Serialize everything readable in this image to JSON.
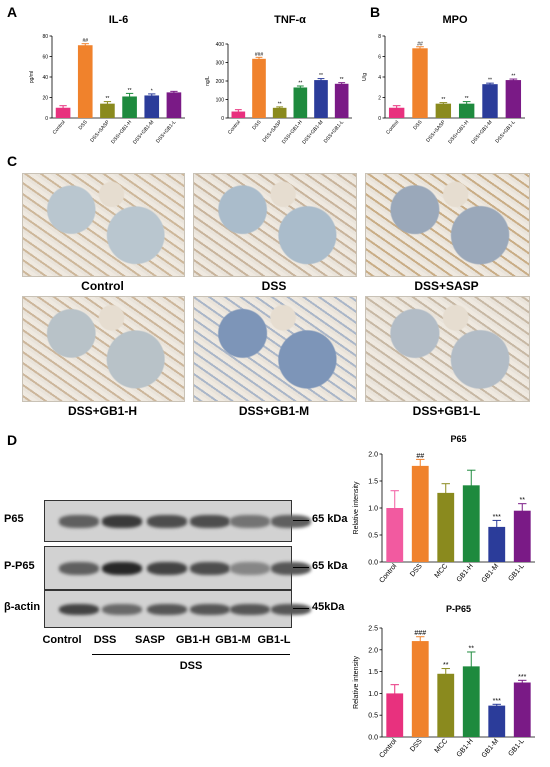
{
  "panel_labels": {
    "a": "A",
    "b": "B",
    "c": "C",
    "d": "D"
  },
  "colors": {
    "Control": "#e8317e",
    "DSS": "#f0822c",
    "SASP": "#8a8a1e",
    "GB1-H": "#1e8a3e",
    "GB1-M": "#2b3c9a",
    "GB1-L": "#7a1a86",
    "Control_light": "#f25aa0"
  },
  "micrographs": {
    "captions": [
      "Control",
      "DSS",
      "DSS+SASP",
      "DSS+GB1-H",
      "DSS+GB1-M",
      "DSS+GB1-L"
    ]
  },
  "blot": {
    "rows": [
      "P65",
      "P-P65",
      "β-actin"
    ],
    "kda": [
      "65 kDa",
      "65 kDa",
      "45kDa"
    ],
    "lanes": [
      "Control",
      "DSS",
      "SASP",
      "GB1-H",
      "GB1-M",
      "GB1-L"
    ],
    "group_label": "DSS",
    "band_intensity": [
      [
        0.55,
        0.75,
        0.65,
        0.65,
        0.45,
        0.55
      ],
      [
        0.55,
        0.85,
        0.7,
        0.65,
        0.35,
        0.6
      ],
      [
        0.7,
        0.5,
        0.6,
        0.6,
        0.6,
        0.6
      ]
    ]
  },
  "chart_data": [
    {
      "type": "bar",
      "title": "IL-6",
      "ylabel": "pg/ml",
      "categories": [
        "Control",
        "DSS",
        "DSS+SASP",
        "DSS+GB1-H",
        "DSS+GB1-M",
        "DSS+GB1-L"
      ],
      "values": [
        10,
        71,
        14,
        21,
        22,
        25
      ],
      "errors": [
        2,
        1.5,
        2,
        3,
        1.5,
        1
      ],
      "annotations": [
        "",
        "##",
        "**",
        "**",
        "*",
        ""
      ],
      "ylim": [
        0,
        80
      ],
      "yticks": [
        0,
        20,
        40,
        60,
        80
      ]
    },
    {
      "type": "bar",
      "title": "TNF-α",
      "ylabel": "ng/L",
      "categories": [
        "Control",
        "DSS",
        "DSS+SASP",
        "DSS+GB1-H",
        "DSS+GB1-M",
        "DSS+GB1-L"
      ],
      "values": [
        35,
        320,
        55,
        165,
        205,
        185
      ],
      "errors": [
        10,
        8,
        5,
        8,
        8,
        6
      ],
      "annotations": [
        "",
        "###",
        "**",
        "**",
        "**",
        "**"
      ],
      "ylim": [
        0,
        400
      ],
      "yticks": [
        0,
        100,
        200,
        300,
        400
      ]
    },
    {
      "type": "bar",
      "title": "MPO",
      "ylabel": "U/g",
      "categories": [
        "Control",
        "DSS",
        "DSS+SASP",
        "DSS+GB1-H",
        "DSS+GB1-M",
        "DSS+GB1-L"
      ],
      "values": [
        1.0,
        6.8,
        1.4,
        1.4,
        3.3,
        3.7
      ],
      "errors": [
        0.2,
        0.15,
        0.1,
        0.2,
        0.1,
        0.1
      ],
      "annotations": [
        "",
        "##",
        "**",
        "**",
        "**",
        "**"
      ],
      "ylim": [
        0,
        8
      ],
      "yticks": [
        0,
        2,
        4,
        6,
        8
      ]
    },
    {
      "type": "bar",
      "title": "P65",
      "ylabel": "Relative intensity",
      "categories": [
        "Control",
        "DSS",
        "MCC",
        "GB1-H",
        "GB1-M",
        "GB1-L"
      ],
      "values": [
        1.0,
        1.78,
        1.28,
        1.42,
        0.65,
        0.95
      ],
      "errors": [
        0.32,
        0.12,
        0.17,
        0.28,
        0.12,
        0.13
      ],
      "annotations": [
        "",
        "##",
        "",
        "",
        "***",
        "**"
      ],
      "ylim": [
        0,
        2.0
      ],
      "yticks": [
        "0.0",
        "0.5",
        "1.0",
        "1.5",
        "2.0"
      ]
    },
    {
      "type": "bar",
      "title": "P-P65",
      "ylabel": "Relative intensity",
      "categories": [
        "Control",
        "DSS",
        "MCC",
        "GB1-H",
        "GB1-M",
        "GB1-L"
      ],
      "values": [
        1.0,
        2.2,
        1.45,
        1.62,
        0.72,
        1.25
      ],
      "errors": [
        0.2,
        0.1,
        0.12,
        0.33,
        0.03,
        0.05
      ],
      "annotations": [
        "",
        "###",
        "**",
        "**",
        "***",
        "***"
      ],
      "ylim": [
        0,
        2.5
      ],
      "yticks": [
        "0.0",
        "0.5",
        "1.0",
        "1.5",
        "2.0",
        "2.5"
      ]
    }
  ]
}
